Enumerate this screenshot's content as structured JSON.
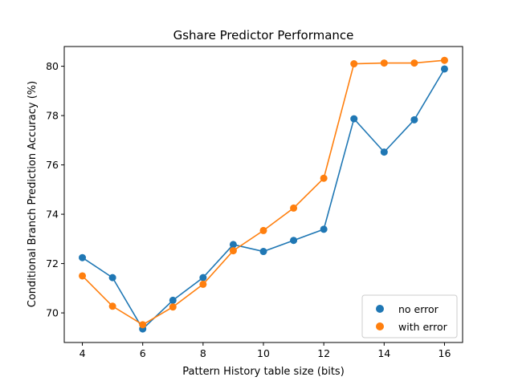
{
  "chart_data": {
    "type": "line",
    "title": "Gshare Predictor Performance",
    "xlabel": "Pattern History table size (bits)",
    "ylabel": "Conditional Branch Prediction Accuracy (%)",
    "x": [
      4,
      5,
      6,
      7,
      8,
      9,
      10,
      11,
      12,
      13,
      14,
      15,
      16
    ],
    "xlim": [
      3.4,
      16.6
    ],
    "ylim": [
      68.8,
      80.8
    ],
    "xticks": [
      4,
      6,
      8,
      10,
      12,
      14,
      16
    ],
    "yticks": [
      70,
      72,
      74,
      76,
      78,
      80
    ],
    "grid": false,
    "legend_position": "lower-right",
    "series": [
      {
        "name": "no error",
        "color": "#1f77b4",
        "values": [
          72.24,
          71.43,
          69.35,
          70.51,
          71.43,
          72.77,
          72.49,
          72.94,
          73.39,
          77.87,
          76.52,
          77.83,
          79.89
        ]
      },
      {
        "name": "with error",
        "color": "#ff7f0e",
        "values": [
          71.5,
          70.27,
          69.52,
          70.24,
          71.16,
          72.52,
          73.34,
          74.25,
          75.46,
          80.1,
          80.13,
          80.13,
          80.24
        ]
      }
    ]
  }
}
